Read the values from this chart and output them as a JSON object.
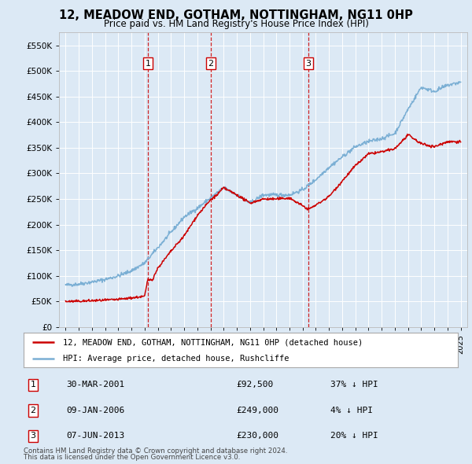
{
  "title": "12, MEADOW END, GOTHAM, NOTTINGHAM, NG11 0HP",
  "subtitle": "Price paid vs. HM Land Registry's House Price Index (HPI)",
  "background_color": "#dce9f5",
  "plot_bg_color": "#dce9f5",
  "sale_color": "#cc0000",
  "hpi_color": "#7bafd4",
  "vline_color": "#cc0000",
  "ylim": [
    0,
    575000
  ],
  "yticks": [
    0,
    50000,
    100000,
    150000,
    200000,
    250000,
    300000,
    350000,
    400000,
    450000,
    500000,
    550000
  ],
  "ytick_labels": [
    "£0",
    "£50K",
    "£100K",
    "£150K",
    "£200K",
    "£250K",
    "£300K",
    "£350K",
    "£400K",
    "£450K",
    "£500K",
    "£550K"
  ],
  "xlim_start": 1994.5,
  "xlim_end": 2025.5,
  "xticks": [
    1995,
    1996,
    1997,
    1998,
    1999,
    2000,
    2001,
    2002,
    2003,
    2004,
    2005,
    2006,
    2007,
    2008,
    2009,
    2010,
    2011,
    2012,
    2013,
    2014,
    2015,
    2016,
    2017,
    2018,
    2019,
    2020,
    2021,
    2022,
    2023,
    2024,
    2025
  ],
  "sales": [
    {
      "year": 2001.24,
      "price": 92500,
      "label": "1"
    },
    {
      "year": 2006.03,
      "price": 249000,
      "label": "2"
    },
    {
      "year": 2013.44,
      "price": 230000,
      "label": "3"
    }
  ],
  "legend_sale_label": "12, MEADOW END, GOTHAM, NOTTINGHAM, NG11 0HP (detached house)",
  "legend_hpi_label": "HPI: Average price, detached house, Rushcliffe",
  "table_rows": [
    {
      "num": "1",
      "date": "30-MAR-2001",
      "price": "£92,500",
      "pct": "37% ↓ HPI"
    },
    {
      "num": "2",
      "date": "09-JAN-2006",
      "price": "£249,000",
      "pct": "4% ↓ HPI"
    },
    {
      "num": "3",
      "date": "07-JUN-2013",
      "price": "£230,000",
      "pct": "20% ↓ HPI"
    }
  ],
  "footnote_line1": "Contains HM Land Registry data © Crown copyright and database right 2024.",
  "footnote_line2": "This data is licensed under the Open Government Licence v3.0."
}
